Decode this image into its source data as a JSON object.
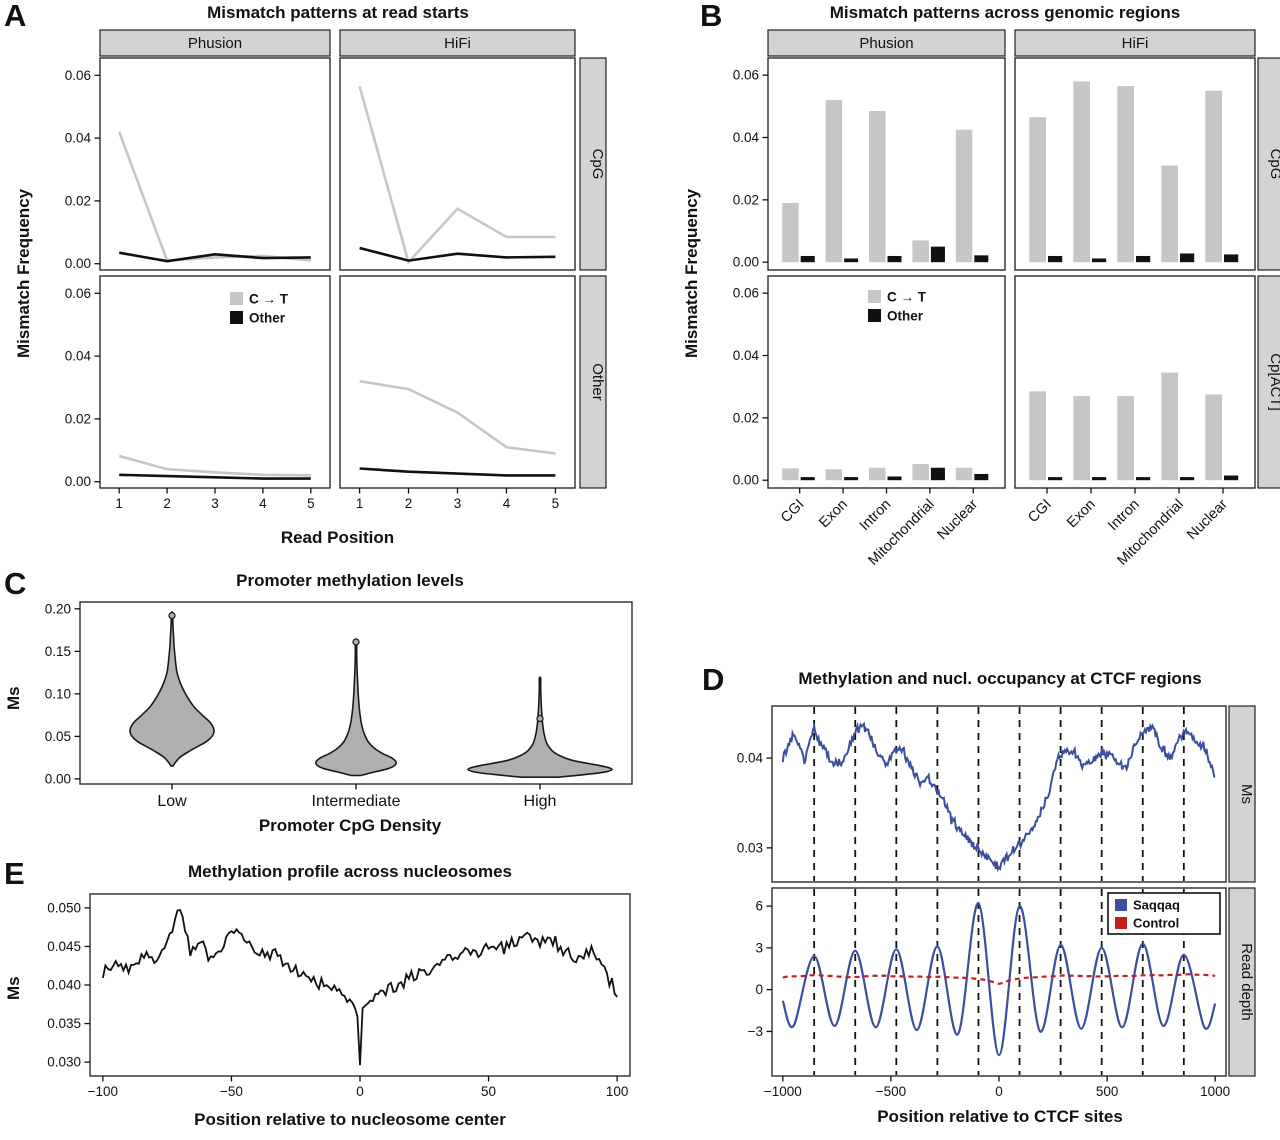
{
  "colors": {
    "background": "#ffffff",
    "ct_gray": "#c6c6c6",
    "other_black": "#111111",
    "strip_bg": "#d3d3d3",
    "strip_border": "#222222",
    "panel_border": "#2a2a2a",
    "violin_fill": "#b0b0b0",
    "violin_stroke": "#1a1a1a",
    "saqqaq_blue": "#3c4e9e",
    "control_red": "#c41e1e",
    "line_black": "#111111"
  },
  "chart_data": [
    {
      "panel": "A",
      "type": "line",
      "label": "A",
      "title": "Mismatch patterns at read starts",
      "ylabel": "Mismatch Frequency",
      "xlabel": "Read Position",
      "col_facets": [
        "Phusion",
        "HiFi"
      ],
      "row_facets": [
        "CpG",
        "Other"
      ],
      "x": [
        1,
        2,
        3,
        4,
        5
      ],
      "xticks": [
        1,
        2,
        3,
        4,
        5
      ],
      "yticks": [
        0,
        0.02,
        0.04,
        0.06
      ],
      "ylim": [
        -0.002,
        0.0655
      ],
      "legend": [
        {
          "label": "C → T",
          "color_key": "ct_gray"
        },
        {
          "label": "Other",
          "color_key": "other_black"
        }
      ],
      "facets": [
        {
          "col": "Phusion",
          "row": "CpG",
          "ct": [
            0.042,
            0.001,
            0.002,
            0.0025,
            0.001
          ],
          "other": [
            0.0035,
            0.0008,
            0.003,
            0.0018,
            0.002
          ]
        },
        {
          "col": "HiFi",
          "row": "CpG",
          "ct": [
            0.0565,
            0.0005,
            0.0175,
            0.0085,
            0.0085
          ],
          "other": [
            0.005,
            0.001,
            0.0032,
            0.002,
            0.0022
          ]
        },
        {
          "col": "Phusion",
          "row": "Other",
          "ct": [
            0.0082,
            0.004,
            0.003,
            0.0022,
            0.002
          ],
          "other": [
            0.0022,
            0.0018,
            0.0014,
            0.001,
            0.001
          ]
        },
        {
          "col": "HiFi",
          "row": "Other",
          "ct": [
            0.032,
            0.0295,
            0.022,
            0.011,
            0.009
          ],
          "other": [
            0.0042,
            0.0032,
            0.0026,
            0.002,
            0.002
          ]
        }
      ]
    },
    {
      "panel": "B",
      "type": "bar",
      "label": "B",
      "title": "Mismatch patterns across genomic regions",
      "ylabel": "Mismatch Frequency",
      "col_facets": [
        "Phusion",
        "HiFi"
      ],
      "row_facets": [
        "CpG",
        "Cp[ACT]"
      ],
      "categories": [
        "CGI",
        "Exon",
        "Intron",
        "Mitochondrial",
        "Nuclear"
      ],
      "yticks": [
        0,
        0.02,
        0.04,
        0.06
      ],
      "ylim": [
        -0.0025,
        0.0655
      ],
      "legend": [
        {
          "label": "C → T",
          "color_key": "ct_gray"
        },
        {
          "label": "Other",
          "color_key": "other_black"
        }
      ],
      "facets": [
        {
          "col": "Phusion",
          "row": "CpG",
          "ct": [
            0.019,
            0.052,
            0.0485,
            0.007,
            0.0425
          ],
          "other": [
            0.002,
            0.0012,
            0.002,
            0.005,
            0.0022
          ]
        },
        {
          "col": "HiFi",
          "row": "CpG",
          "ct": [
            0.0465,
            0.058,
            0.0565,
            0.031,
            0.055
          ],
          "other": [
            0.002,
            0.0012,
            0.002,
            0.0028,
            0.0025
          ]
        },
        {
          "col": "Phusion",
          "row": "Cp[ACT]",
          "ct": [
            0.0038,
            0.0035,
            0.004,
            0.0052,
            0.004
          ],
          "other": [
            0.001,
            0.001,
            0.0012,
            0.004,
            0.002
          ]
        },
        {
          "col": "HiFi",
          "row": "Cp[ACT]",
          "ct": [
            0.0285,
            0.027,
            0.027,
            0.0345,
            0.0275
          ],
          "other": [
            0.001,
            0.001,
            0.001,
            0.001,
            0.0015
          ]
        }
      ]
    },
    {
      "panel": "C",
      "type": "violin",
      "label": "C",
      "title": "Promoter methylation levels",
      "ylabel": "Ms",
      "xlabel": "Promoter CpG Density",
      "categories": [
        "Low",
        "Intermediate",
        "High"
      ],
      "yticks": [
        0,
        0.05,
        0.1,
        0.15,
        0.2
      ],
      "ylim": [
        -0.006,
        0.208
      ],
      "violins": [
        {
          "category": "Low",
          "max_halfwidth": 42,
          "marker_y": 0.192,
          "profile": [
            [
              0.015,
              0.02
            ],
            [
              0.025,
              0.18
            ],
            [
              0.035,
              0.5
            ],
            [
              0.045,
              0.85
            ],
            [
              0.055,
              1.0
            ],
            [
              0.065,
              0.93
            ],
            [
              0.075,
              0.72
            ],
            [
              0.085,
              0.52
            ],
            [
              0.095,
              0.38
            ],
            [
              0.105,
              0.27
            ],
            [
              0.115,
              0.18
            ],
            [
              0.125,
              0.12
            ],
            [
              0.135,
              0.09
            ],
            [
              0.145,
              0.07
            ],
            [
              0.155,
              0.05
            ],
            [
              0.165,
              0.04
            ],
            [
              0.175,
              0.028
            ],
            [
              0.185,
              0.018
            ],
            [
              0.195,
              0.008
            ]
          ]
        },
        {
          "category": "Intermediate",
          "max_halfwidth": 40,
          "marker_y": 0.161,
          "profile": [
            [
              0.004,
              0.12
            ],
            [
              0.008,
              0.45
            ],
            [
              0.012,
              0.8
            ],
            [
              0.016,
              0.97
            ],
            [
              0.02,
              1.0
            ],
            [
              0.025,
              0.88
            ],
            [
              0.03,
              0.66
            ],
            [
              0.036,
              0.46
            ],
            [
              0.044,
              0.3
            ],
            [
              0.054,
              0.2
            ],
            [
              0.064,
              0.14
            ],
            [
              0.076,
              0.1
            ],
            [
              0.09,
              0.07
            ],
            [
              0.105,
              0.05
            ],
            [
              0.12,
              0.035
            ],
            [
              0.135,
              0.022
            ],
            [
              0.15,
              0.012
            ],
            [
              0.163,
              0.005
            ]
          ]
        },
        {
          "category": "High",
          "max_halfwidth": 72,
          "marker_y": 0.071,
          "profile": [
            [
              0.002,
              0.25
            ],
            [
              0.005,
              0.62
            ],
            [
              0.008,
              0.9
            ],
            [
              0.011,
              1.0
            ],
            [
              0.014,
              0.92
            ],
            [
              0.018,
              0.68
            ],
            [
              0.022,
              0.44
            ],
            [
              0.027,
              0.28
            ],
            [
              0.033,
              0.17
            ],
            [
              0.041,
              0.1
            ],
            [
              0.051,
              0.062
            ],
            [
              0.062,
              0.04
            ],
            [
              0.075,
              0.026
            ],
            [
              0.09,
              0.016
            ],
            [
              0.105,
              0.01
            ],
            [
              0.118,
              0.005
            ]
          ]
        }
      ]
    },
    {
      "panel": "D",
      "type": "line",
      "label": "D",
      "title": "Methylation and nucl. occupancy at CTCF regions",
      "xlabel": "Position relative to CTCF sites",
      "strip_top": "Ms",
      "strip_bottom": "Read depth",
      "xticks": [
        -1000,
        -500,
        0,
        500,
        1000
      ],
      "xlim": [
        -1050,
        1050
      ],
      "guide_x": [
        -855,
        -665,
        -475,
        -285,
        -95,
        95,
        285,
        475,
        665,
        855
      ],
      "top": {
        "yticks": [
          0.03,
          0.04
        ],
        "ylim": [
          0.0262,
          0.0458
        ],
        "noise": 0.00055,
        "keypoints": [
          [
            -1000,
            0.04
          ],
          [
            -950,
            0.0428
          ],
          [
            -900,
            0.0399
          ],
          [
            -860,
            0.0432
          ],
          [
            -820,
            0.0415
          ],
          [
            -780,
            0.0398
          ],
          [
            -730,
            0.0392
          ],
          [
            -680,
            0.0422
          ],
          [
            -640,
            0.0438
          ],
          [
            -600,
            0.0428
          ],
          [
            -560,
            0.0405
          ],
          [
            -520,
            0.0392
          ],
          [
            -480,
            0.0412
          ],
          [
            -440,
            0.0408
          ],
          [
            -400,
            0.0385
          ],
          [
            -360,
            0.0371
          ],
          [
            -330,
            0.0378
          ],
          [
            -300,
            0.0369
          ],
          [
            -260,
            0.0355
          ],
          [
            -220,
            0.0332
          ],
          [
            -180,
            0.032
          ],
          [
            -140,
            0.0308
          ],
          [
            -100,
            0.03
          ],
          [
            -60,
            0.0291
          ],
          [
            -20,
            0.0281
          ],
          [
            0,
            0.0277
          ],
          [
            30,
            0.0288
          ],
          [
            70,
            0.03
          ],
          [
            110,
            0.0308
          ],
          [
            150,
            0.0321
          ],
          [
            190,
            0.034
          ],
          [
            230,
            0.036
          ],
          [
            270,
            0.0398
          ],
          [
            310,
            0.0411
          ],
          [
            350,
            0.0404
          ],
          [
            390,
            0.0391
          ],
          [
            430,
            0.0397
          ],
          [
            470,
            0.0405
          ],
          [
            510,
            0.0404
          ],
          [
            550,
            0.0398
          ],
          [
            590,
            0.0387
          ],
          [
            630,
            0.0415
          ],
          [
            670,
            0.0432
          ],
          [
            710,
            0.0434
          ],
          [
            750,
            0.0412
          ],
          [
            790,
            0.0398
          ],
          [
            830,
            0.042
          ],
          [
            870,
            0.0431
          ],
          [
            910,
            0.042
          ],
          [
            950,
            0.0412
          ],
          [
            1000,
            0.0378
          ]
        ]
      },
      "bottom": {
        "yticks": [
          6,
          3,
          0,
          -3
        ],
        "ylim": [
          -6.2,
          7.3
        ],
        "legend": [
          {
            "label": "Saqqaq",
            "color_key": "saqqaq_blue"
          },
          {
            "label": "Control",
            "color_key": "control_red"
          }
        ],
        "saqqaq_keypoints": [
          [
            -1000,
            -0.8
          ],
          [
            -950,
            -2.6
          ],
          [
            -855,
            2.4
          ],
          [
            -760,
            -2.6
          ],
          [
            -665,
            2.8
          ],
          [
            -570,
            -2.7
          ],
          [
            -475,
            2.9
          ],
          [
            -380,
            -2.9
          ],
          [
            -285,
            3.1
          ],
          [
            -190,
            -3.2
          ],
          [
            -95,
            6.2
          ],
          [
            0,
            -4.7
          ],
          [
            95,
            6.0
          ],
          [
            190,
            -3.0
          ],
          [
            285,
            3.2
          ],
          [
            380,
            -2.8
          ],
          [
            475,
            3.0
          ],
          [
            570,
            -2.7
          ],
          [
            665,
            3.3
          ],
          [
            760,
            -2.6
          ],
          [
            855,
            2.5
          ],
          [
            950,
            -2.7
          ],
          [
            1000,
            -1.0
          ]
        ],
        "control_keypoints": [
          [
            -1000,
            0.9
          ],
          [
            -850,
            1.05
          ],
          [
            -700,
            0.9
          ],
          [
            -550,
            1.0
          ],
          [
            -400,
            0.95
          ],
          [
            -250,
            0.9
          ],
          [
            -150,
            0.85
          ],
          [
            -60,
            0.7
          ],
          [
            0,
            0.4
          ],
          [
            60,
            0.75
          ],
          [
            150,
            0.9
          ],
          [
            300,
            1.0
          ],
          [
            450,
            0.95
          ],
          [
            600,
            1.0
          ],
          [
            750,
            1.05
          ],
          [
            900,
            1.1
          ],
          [
            1000,
            1.0
          ]
        ]
      }
    },
    {
      "panel": "E",
      "type": "line",
      "label": "E",
      "title": "Methylation profile across nucleosomes",
      "ylabel": "Ms",
      "xlabel": "Position relative to nucleosome center",
      "xticks": [
        -100,
        -50,
        0,
        50,
        100
      ],
      "xlim": [
        -105,
        105
      ],
      "yticks": [
        0.03,
        0.035,
        0.04,
        0.045,
        0.05
      ],
      "ylim": [
        0.0282,
        0.0518
      ],
      "noise": 0.0011,
      "keypoints": [
        [
          -100,
          0.0415
        ],
        [
          -95,
          0.0432
        ],
        [
          -90,
          0.0422
        ],
        [
          -85,
          0.0438
        ],
        [
          -80,
          0.0432
        ],
        [
          -75,
          0.0458
        ],
        [
          -70,
          0.0502
        ],
        [
          -66,
          0.0442
        ],
        [
          -62,
          0.0455
        ],
        [
          -58,
          0.0438
        ],
        [
          -54,
          0.0452
        ],
        [
          -50,
          0.0474
        ],
        [
          -46,
          0.0462
        ],
        [
          -42,
          0.0452
        ],
        [
          -38,
          0.044
        ],
        [
          -34,
          0.0445
        ],
        [
          -30,
          0.0432
        ],
        [
          -26,
          0.0422
        ],
        [
          -22,
          0.0415
        ],
        [
          -18,
          0.0408
        ],
        [
          -14,
          0.0402
        ],
        [
          -10,
          0.0395
        ],
        [
          -6,
          0.0385
        ],
        [
          -3,
          0.0378
        ],
        [
          -1,
          0.036
        ],
        [
          0,
          0.0296
        ],
        [
          1,
          0.0368
        ],
        [
          3,
          0.038
        ],
        [
          6,
          0.0386
        ],
        [
          10,
          0.039
        ],
        [
          14,
          0.04
        ],
        [
          18,
          0.0406
        ],
        [
          22,
          0.0412
        ],
        [
          26,
          0.0416
        ],
        [
          30,
          0.042
        ],
        [
          34,
          0.0432
        ],
        [
          38,
          0.044
        ],
        [
          42,
          0.0446
        ],
        [
          46,
          0.0443
        ],
        [
          50,
          0.0452
        ],
        [
          54,
          0.0447
        ],
        [
          58,
          0.0452
        ],
        [
          62,
          0.046
        ],
        [
          66,
          0.0464
        ],
        [
          70,
          0.0452
        ],
        [
          74,
          0.0458
        ],
        [
          78,
          0.0448
        ],
        [
          82,
          0.0438
        ],
        [
          86,
          0.0436
        ],
        [
          90,
          0.0441
        ],
        [
          94,
          0.043
        ],
        [
          100,
          0.0385
        ]
      ]
    }
  ]
}
